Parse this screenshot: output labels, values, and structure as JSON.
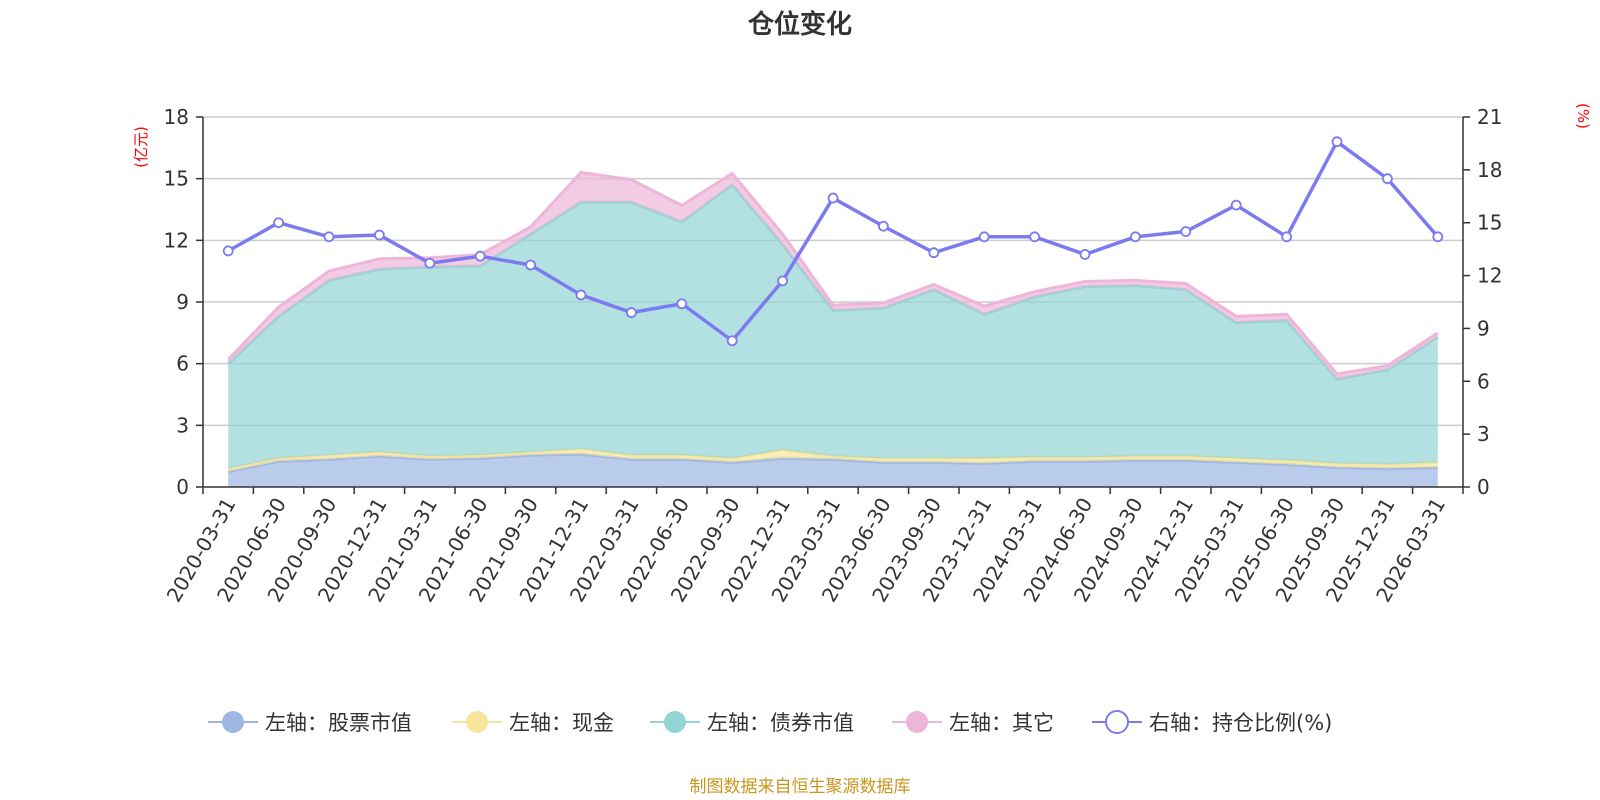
{
  "chart_data": {
    "type": "area",
    "title": "仓位变化",
    "source_note": "制图数据来自恒生聚源数据库",
    "left_axis": {
      "unit": "(亿元)",
      "ticks": [
        "0",
        "3",
        "6",
        "9",
        "12",
        "15",
        "18"
      ],
      "range": [
        0,
        18
      ]
    },
    "right_axis": {
      "unit": "(%)",
      "ticks": [
        "0",
        "3",
        "6",
        "9",
        "12",
        "15",
        "18",
        "21"
      ],
      "range": [
        0,
        21
      ]
    },
    "categories": [
      "2020-03-31",
      "2020-06-30",
      "2020-09-30",
      "2020-12-31",
      "2021-03-31",
      "2021-06-30",
      "2021-09-30",
      "2021-12-31",
      "2022-03-31",
      "2022-06-30",
      "2022-09-30",
      "2022-12-31",
      "2023-03-31",
      "2023-06-30",
      "2023-09-30",
      "2023-12-31",
      "2024-03-31",
      "2024-06-30",
      "2024-09-30",
      "2024-12-31",
      "2025-03-31",
      "2025-06-30",
      "2025-09-30",
      "2025-12-31",
      "2026-03-31"
    ],
    "series": [
      {
        "name": "股票市值",
        "legend": "左轴：股票市值",
        "axis": "left",
        "kind": "stack",
        "color": "#9db6e3",
        "values": [
          0.75,
          1.25,
          1.35,
          1.5,
          1.35,
          1.4,
          1.55,
          1.6,
          1.35,
          1.35,
          1.2,
          1.4,
          1.35,
          1.2,
          1.2,
          1.15,
          1.25,
          1.25,
          1.3,
          1.3,
          1.2,
          1.1,
          0.95,
          0.9,
          0.95
        ]
      },
      {
        "name": "现金",
        "legend": "左轴：现金",
        "axis": "left",
        "kind": "stack",
        "color": "#f7e59c",
        "values": [
          0.15,
          0.15,
          0.2,
          0.2,
          0.15,
          0.15,
          0.15,
          0.25,
          0.2,
          0.2,
          0.2,
          0.4,
          0.15,
          0.2,
          0.2,
          0.25,
          0.2,
          0.2,
          0.2,
          0.2,
          0.2,
          0.2,
          0.2,
          0.2,
          0.25
        ]
      },
      {
        "name": "债券市值",
        "legend": "左轴：债券市值",
        "axis": "left",
        "kind": "stack",
        "color": "#93d4d4",
        "values": [
          5.1,
          6.9,
          8.5,
          8.9,
          9.2,
          9.2,
          10.6,
          12.0,
          12.3,
          11.35,
          13.3,
          10.0,
          7.1,
          7.3,
          8.2,
          7.0,
          7.8,
          8.3,
          8.3,
          8.1,
          6.6,
          6.8,
          4.1,
          4.6,
          6.1
        ]
      },
      {
        "name": "其它",
        "legend": "左轴：其它",
        "axis": "left",
        "kind": "stack",
        "color": "#edb6d9",
        "values": [
          0.2,
          0.45,
          0.45,
          0.5,
          0.45,
          0.55,
          0.35,
          1.45,
          1.1,
          0.8,
          0.55,
          0.5,
          0.25,
          0.25,
          0.25,
          0.4,
          0.25,
          0.25,
          0.25,
          0.3,
          0.3,
          0.3,
          0.25,
          0.2,
          0.2
        ]
      },
      {
        "name": "持仓比例(%)",
        "legend": "右轴：持仓比例(%)",
        "axis": "right",
        "kind": "line",
        "color": "#7b7bef",
        "values": [
          13.4,
          15.0,
          14.2,
          14.3,
          12.7,
          13.1,
          12.6,
          10.9,
          9.9,
          10.4,
          8.3,
          11.7,
          16.4,
          14.8,
          13.3,
          14.2,
          14.2,
          13.2,
          14.2,
          14.5,
          16.0,
          14.2,
          19.6,
          17.5,
          14.2
        ]
      }
    ]
  }
}
